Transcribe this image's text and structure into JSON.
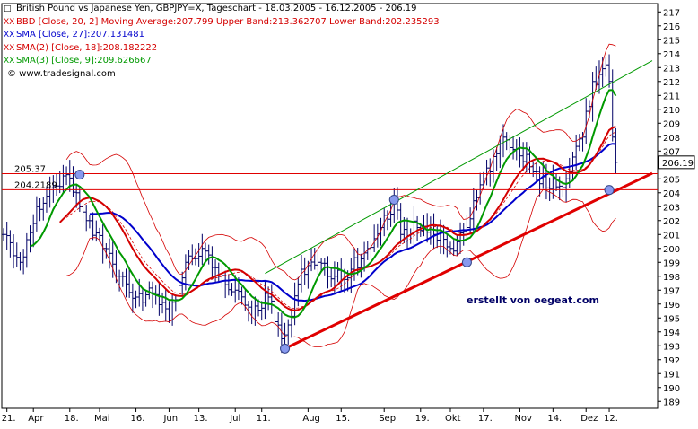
{
  "chart_data": {
    "type": "line",
    "title": "British Pound vs Japanese Yen, GBPJPY=X, Tageschart - 18.03.2005 - 16.12.2005 - 206.19",
    "legend": [
      {
        "text": "British Pound vs Japanese Yen, GBPJPY=X, Tageschart - 18.03.2005 - 16.12.2005 - 206.19",
        "color": "#000000",
        "symbol": "□"
      },
      {
        "text": "BBD [Close, 20, 2] Moving Average:207.799 Upper Band:213.362707 Lower Band:202.235293",
        "color": "#d40000",
        "symbol": "XX"
      },
      {
        "text": "SMA [Close, 27]:207.131481",
        "color": "#0000cc",
        "symbol": "XX"
      },
      {
        "text": "SMA(2) [Close, 18]:208.182222",
        "color": "#d40000",
        "symbol": "XX"
      },
      {
        "text": "SMA(3) [Close, 9]:209.626667",
        "color": "#009900",
        "symbol": "XX"
      },
      {
        "text": "© www.tradesignal.com",
        "color": "#000000",
        "symbol": ""
      }
    ],
    "watermark": "erstellt von oegeat.com",
    "ylim": [
      188.5,
      217.6
    ],
    "y_ticks": [
      189,
      190,
      191,
      192,
      193,
      194,
      195,
      196,
      197,
      198,
      199,
      200,
      201,
      202,
      203,
      204,
      205,
      206,
      207,
      208,
      209,
      210,
      211,
      212,
      213,
      214,
      215,
      216,
      217
    ],
    "x_range": [
      0,
      196
    ],
    "x_ticks": [
      {
        "label": "21.",
        "t": 1
      },
      {
        "label": "Apr",
        "t": 9
      },
      {
        "label": "18.",
        "t": 20
      },
      {
        "label": "Mai",
        "t": 29
      },
      {
        "label": "16.",
        "t": 40
      },
      {
        "label": "Jun",
        "t": 50
      },
      {
        "label": "13.",
        "t": 59
      },
      {
        "label": "Jul",
        "t": 70
      },
      {
        "label": "11.",
        "t": 78
      },
      {
        "label": "Aug",
        "t": 92
      },
      {
        "label": "15.",
        "t": 102
      },
      {
        "label": "Sep",
        "t": 115
      },
      {
        "label": "19.",
        "t": 126
      },
      {
        "label": "Okt",
        "t": 135
      },
      {
        "label": "17.",
        "t": 145
      },
      {
        "label": "Nov",
        "t": 156
      },
      {
        "label": "14.",
        "t": 166
      },
      {
        "label": "Dez",
        "t": 176
      },
      {
        "label": "12.",
        "t": 183
      }
    ],
    "price_labels": [
      {
        "text": "205.37",
        "value": 205.37
      },
      {
        "text": "204.2189",
        "value": 204.2189
      }
    ],
    "last_price": {
      "text": "206.19",
      "value": 206.19
    },
    "h_lines": [
      205.37,
      204.2189
    ],
    "lower_trendline": {
      "t": [
        85,
        196
      ],
      "v": [
        192.8,
        205.4
      ]
    },
    "upper_trendline": {
      "t": [
        79,
        196
      ],
      "v": [
        198.2,
        213.5
      ]
    },
    "markers": [
      {
        "t": 23,
        "v": 205.3
      },
      {
        "t": 85,
        "v": 192.8
      },
      {
        "t": 118,
        "v": 203.5
      },
      {
        "t": 140,
        "v": 199.0
      },
      {
        "t": 183,
        "v": 204.2
      }
    ],
    "close_anchors": {
      "t": [
        0,
        5,
        10,
        15,
        19,
        22,
        25,
        30,
        35,
        40,
        45,
        50,
        55,
        60,
        65,
        70,
        75,
        80,
        84,
        86,
        90,
        95,
        100,
        105,
        110,
        114,
        118,
        120,
        125,
        130,
        135,
        140,
        145,
        150,
        155,
        160,
        165,
        170,
        175,
        178,
        180,
        182,
        183,
        184,
        185
      ],
      "v": [
        201,
        199,
        203,
        204.5,
        205.3,
        204,
        202,
        200,
        198,
        196.5,
        196.8,
        195.5,
        199,
        200,
        198,
        197,
        195.5,
        196.5,
        193.5,
        194.5,
        198.5,
        199,
        198,
        198.5,
        200,
        201.5,
        203.5,
        201,
        201.5,
        201,
        200,
        201.5,
        205,
        207.5,
        207.5,
        205.5,
        204.3,
        205,
        208,
        212,
        212.5,
        213.2,
        212,
        208,
        206.19
      ]
    },
    "series": [
      {
        "name": "Moving Average",
        "color": "#d40000",
        "period": 20,
        "role": "bb_mid",
        "dash": true
      },
      {
        "name": "Upper Band",
        "color": "#d40000",
        "period": 20,
        "role": "bb_upper"
      },
      {
        "name": "Lower Band",
        "color": "#d40000",
        "period": 20,
        "role": "bb_lower"
      },
      {
        "name": "SMA",
        "color": "#0000cc",
        "period": 27,
        "role": "sma"
      },
      {
        "name": "SMA(2)",
        "color": "#d40000",
        "period": 18,
        "role": "sma"
      },
      {
        "name": "SMA(3)",
        "color": "#009900",
        "period": 9,
        "role": "sma"
      }
    ],
    "colors": {
      "bars": "#000066",
      "trend_red": "#e00000",
      "trend_green": "#009900",
      "marker_fill": "#8899ee",
      "marker_stroke": "#334488"
    }
  }
}
